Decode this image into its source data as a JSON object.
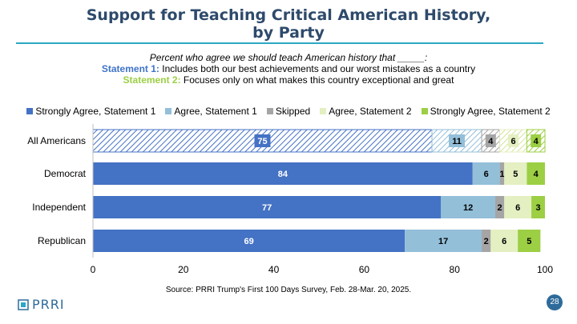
{
  "title_line1": "Support for Teaching Critical American History,",
  "title_line2": "by Party",
  "subtitle": {
    "lead": "Percent who agree we should teach American history that _____:",
    "s1_label": "Statement 1:",
    "s1_text": "Includes both our best achievements and our worst mistakes as a country",
    "s2_label": "Statement 2:",
    "s2_text": "Focuses only on what makes this country exceptional and great"
  },
  "source": "Source: PRRI Trump's First 100 Days Survey, Feb. 28-Mar. 20, 2025.",
  "logo_text": "PRRI",
  "page_number": "28",
  "colors": {
    "strongly_agree_1": "#4472c4",
    "agree_1": "#93bfd9",
    "skipped": "#a5a5a5",
    "agree_2": "#e4efc2",
    "strongly_agree_2": "#9ccf44",
    "title": "#2e4a6b",
    "rule": "#2aa8c4"
  },
  "chart_data": {
    "type": "bar",
    "orientation": "horizontal",
    "stacked": true,
    "categories": [
      "All Americans",
      "Democrat",
      "Independent",
      "Republican"
    ],
    "series": [
      {
        "name": "Strongly Agree, Statement 1",
        "values": [
          75,
          84,
          77,
          69
        ]
      },
      {
        "name": "Agree, Statement 1",
        "values": [
          11,
          6,
          12,
          17
        ]
      },
      {
        "name": "Skipped",
        "values": [
          4,
          1,
          2,
          2
        ]
      },
      {
        "name": "Agree, Statement 2",
        "values": [
          6,
          5,
          6,
          6
        ]
      },
      {
        "name": "Strongly Agree, Statement 2",
        "values": [
          4,
          4,
          3,
          5
        ]
      }
    ],
    "xlim": [
      0,
      100
    ],
    "xticks": [
      0,
      20,
      40,
      60,
      80,
      100
    ],
    "hatched_category": "All Americans",
    "legend_position": "top"
  }
}
